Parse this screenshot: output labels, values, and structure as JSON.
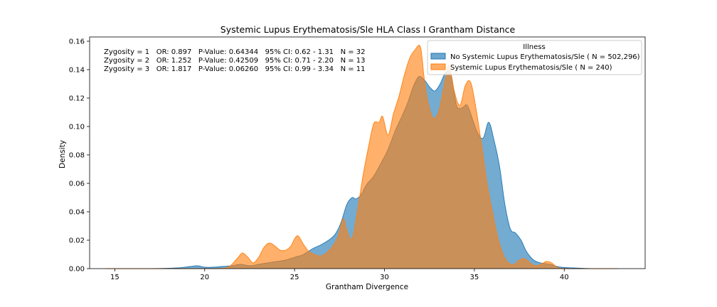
{
  "chart_data": {
    "type": "area",
    "title": "Systemic Lupus Erythematosis/Sle HLA Class I Grantham Distance",
    "xlabel": "Grantham Divergence",
    "ylabel": "Density",
    "xlim": [
      13.6,
      44.5
    ],
    "ylim": [
      0,
      0.163
    ],
    "xticks": [
      15,
      20,
      25,
      30,
      35,
      40
    ],
    "yticks": [
      0.0,
      0.02,
      0.04,
      0.06,
      0.08,
      0.1,
      0.12,
      0.14,
      0.16
    ],
    "grid": false,
    "legend": {
      "title": "Illness",
      "placement": "upper-right"
    },
    "annotations": [
      "Zygosity = 1   OR: 0.897   P-Value: 0.64344   95% CI: 0.62 - 1.31   N = 32",
      "Zygosity = 2   OR: 1.252   P-Value: 0.42509   95% CI: 0.71 - 2.20   N = 13",
      "Zygosity = 3   OR: 1.817   P-Value: 0.06260   95% CI: 0.99 - 3.34   N = 11"
    ],
    "series": [
      {
        "name": "No Systemic Lupus Erythematosis/Sle ( N = 502,296)",
        "color": "#1f77b4",
        "x": [
          14.5,
          17.0,
          18.5,
          19.2,
          19.6,
          20.0,
          20.5,
          21.0,
          21.5,
          22.0,
          22.5,
          23.0,
          23.5,
          24.0,
          24.5,
          25.0,
          25.5,
          26.0,
          26.5,
          27.0,
          27.3,
          27.6,
          27.9,
          28.2,
          28.4,
          28.7,
          29.0,
          29.4,
          29.8,
          30.2,
          30.6,
          31.0,
          31.3,
          31.6,
          31.9,
          32.2,
          32.5,
          32.8,
          33.1,
          33.4,
          33.7,
          34.0,
          34.3,
          34.6,
          34.9,
          35.2,
          35.5,
          35.8,
          36.1,
          36.4,
          36.7,
          37.0,
          37.3,
          37.6,
          37.9,
          38.3,
          38.7,
          39.2,
          39.8,
          40.5,
          41.5,
          43.0
        ],
        "y": [
          0.0,
          0.0,
          0.0005,
          0.0015,
          0.002,
          0.001,
          0.001,
          0.0015,
          0.002,
          0.003,
          0.002,
          0.003,
          0.004,
          0.005,
          0.006,
          0.008,
          0.01,
          0.014,
          0.017,
          0.021,
          0.025,
          0.033,
          0.045,
          0.05,
          0.049,
          0.052,
          0.059,
          0.065,
          0.074,
          0.084,
          0.097,
          0.108,
          0.117,
          0.128,
          0.135,
          0.133,
          0.128,
          0.125,
          0.13,
          0.138,
          0.137,
          0.115,
          0.113,
          0.115,
          0.105,
          0.095,
          0.092,
          0.103,
          0.09,
          0.072,
          0.045,
          0.028,
          0.025,
          0.02,
          0.012,
          0.006,
          0.004,
          0.003,
          0.001,
          0.0005,
          0.0,
          0.0
        ]
      },
      {
        "name": "Systemic Lupus Erythematosis/Sle ( N = 240)",
        "color": "#ff7f0e",
        "x": [
          14.5,
          19.0,
          20.5,
          21.3,
          21.8,
          22.1,
          22.4,
          22.7,
          23.0,
          23.3,
          23.6,
          23.9,
          24.2,
          24.5,
          24.8,
          25.0,
          25.2,
          25.5,
          25.8,
          26.1,
          26.5,
          27.0,
          27.4,
          27.7,
          27.9,
          28.2,
          28.5,
          28.8,
          29.1,
          29.4,
          29.7,
          29.9,
          30.2,
          30.5,
          30.8,
          31.1,
          31.4,
          31.7,
          32.0,
          32.2,
          32.4,
          32.7,
          33.0,
          33.2,
          33.4,
          33.6,
          33.9,
          34.2,
          34.5,
          34.8,
          35.1,
          35.4,
          35.7,
          36.0,
          36.3,
          36.6,
          36.9,
          37.2,
          37.5,
          37.8,
          38.1,
          38.4,
          38.7,
          39.0,
          39.3,
          39.6,
          40.0,
          41.0,
          43.0
        ],
        "y": [
          0.0,
          0.0,
          0.0,
          0.001,
          0.007,
          0.011,
          0.008,
          0.004,
          0.008,
          0.015,
          0.018,
          0.016,
          0.013,
          0.013,
          0.016,
          0.021,
          0.023,
          0.017,
          0.012,
          0.01,
          0.009,
          0.014,
          0.022,
          0.035,
          0.027,
          0.021,
          0.041,
          0.065,
          0.085,
          0.102,
          0.103,
          0.107,
          0.094,
          0.109,
          0.121,
          0.136,
          0.148,
          0.154,
          0.156,
          0.135,
          0.118,
          0.106,
          0.11,
          0.121,
          0.134,
          0.143,
          0.124,
          0.115,
          0.129,
          0.131,
          0.112,
          0.087,
          0.06,
          0.04,
          0.022,
          0.01,
          0.004,
          0.003,
          0.006,
          0.007,
          0.004,
          0.002,
          0.003,
          0.005,
          0.004,
          0.001,
          0.0,
          0.0,
          0.0
        ]
      }
    ]
  }
}
